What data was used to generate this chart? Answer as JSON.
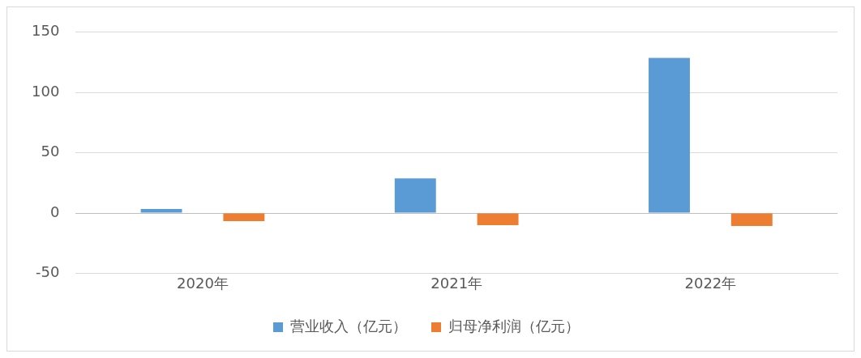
{
  "chart_data": {
    "type": "bar",
    "categories": [
      "2020年",
      "2021年",
      "2022年"
    ],
    "series": [
      {
        "name": "营业收入（亿元）",
        "color": "#5b9bd5",
        "values": [
          3.3,
          28.7,
          128.7
        ]
      },
      {
        "name": "归母净利润（亿元）",
        "color": "#ed7d31",
        "values": [
          -6.7,
          -10,
          -10.7
        ]
      }
    ],
    "ylim": [
      -50,
      150
    ],
    "yticks": [
      -50,
      0,
      50,
      100,
      150
    ],
    "grid": "y",
    "legend": "bottom"
  }
}
